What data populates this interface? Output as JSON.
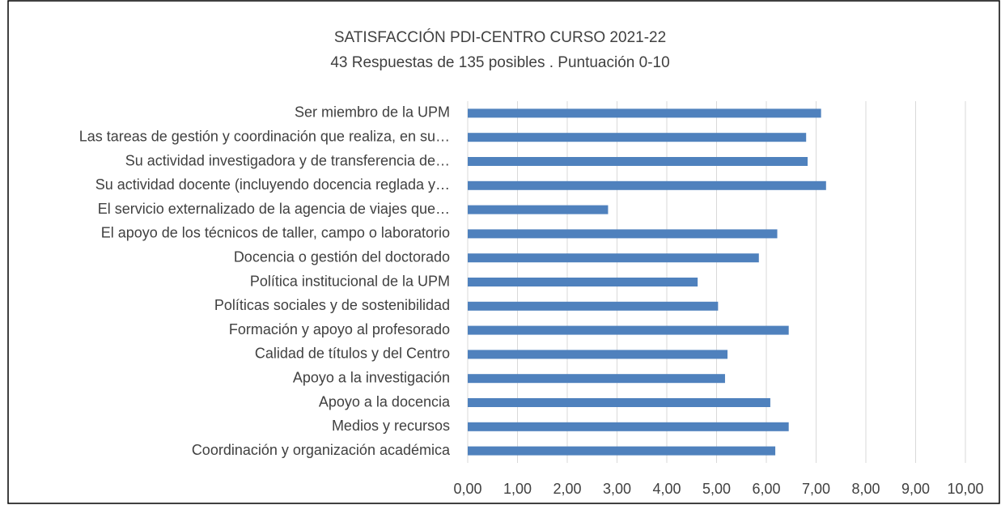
{
  "chart_data": {
    "type": "barh",
    "title": "SATISFACCIÓN PDI-CENTRO CURSO 2021-22",
    "subtitle": "43 Respuestas de 135 posibles . Puntuación 0-10",
    "categories": [
      "Ser miembro de la UPM",
      "Las tareas de gestión y coordinación que realiza, en su…",
      "Su actividad investigadora y de transferencia de…",
      "Su actividad docente (incluyendo docencia reglada y…",
      "El servicio externalizado de la agencia de viajes que…",
      "El apoyo de los técnicos de taller, campo o laboratorio",
      "Docencia o gestión del doctorado",
      "Política institucional de la UPM",
      "Políticas sociales y de sostenibilidad",
      "Formación y apoyo al profesorado",
      "Calidad de títulos y del Centro",
      "Apoyo a la investigación",
      "Apoyo a la docencia",
      "Medios y recursos",
      "Coordinación y organización académica"
    ],
    "values": [
      7.1,
      6.8,
      6.83,
      7.2,
      2.82,
      6.22,
      5.85,
      4.62,
      5.03,
      6.45,
      5.22,
      5.17,
      6.08,
      6.45,
      6.18
    ],
    "color": "#4f81bd",
    "xlim": [
      0,
      10
    ],
    "xticks": [
      {
        "value": 0,
        "label": "0,00"
      },
      {
        "value": 1,
        "label": "1,00"
      },
      {
        "value": 2,
        "label": "2,00"
      },
      {
        "value": 3,
        "label": "3,00"
      },
      {
        "value": 4,
        "label": "4,00"
      },
      {
        "value": 5,
        "label": "5,00"
      },
      {
        "value": 6,
        "label": "6,00"
      },
      {
        "value": 7,
        "label": "7,00"
      },
      {
        "value": 8,
        "label": "8,00"
      },
      {
        "value": 9,
        "label": "9,00"
      },
      {
        "value": 10,
        "label": "10,00"
      }
    ],
    "grid": true
  }
}
